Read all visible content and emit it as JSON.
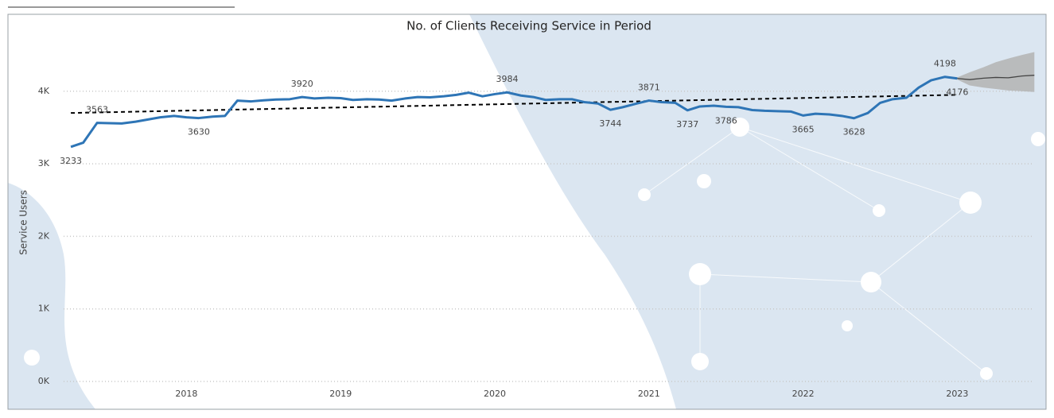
{
  "chart_data": {
    "type": "line",
    "title": "No. of Clients Receiving Service in Period",
    "y_label": "Service Users",
    "x": [
      2017.25,
      2017.33,
      2017.42,
      2017.5,
      2017.58,
      2017.67,
      2017.75,
      2017.83,
      2017.92,
      2018.0,
      2018.08,
      2018.17,
      2018.25,
      2018.33,
      2018.42,
      2018.5,
      2018.58,
      2018.67,
      2018.75,
      2018.83,
      2018.92,
      2019.0,
      2019.08,
      2019.17,
      2019.25,
      2019.33,
      2019.42,
      2019.5,
      2019.58,
      2019.67,
      2019.75,
      2019.83,
      2019.92,
      2020.0,
      2020.08,
      2020.17,
      2020.25,
      2020.33,
      2020.42,
      2020.5,
      2020.58,
      2020.67,
      2020.75,
      2020.83,
      2020.92,
      2021.0,
      2021.08,
      2021.17,
      2021.25,
      2021.33,
      2021.42,
      2021.5,
      2021.58,
      2021.67,
      2021.75,
      2021.83,
      2021.92,
      2022.0,
      2022.08,
      2022.17,
      2022.25,
      2022.33,
      2022.42,
      2022.5,
      2022.58,
      2022.67,
      2022.75,
      2022.83,
      2022.92,
      2023.0
    ],
    "series": [
      {
        "name": "Service Users",
        "color": "#2e75b6",
        "values": [
          3233,
          3290,
          3563,
          3560,
          3555,
          3580,
          3610,
          3640,
          3660,
          3640,
          3630,
          3650,
          3660,
          3870,
          3860,
          3875,
          3885,
          3890,
          3920,
          3900,
          3910,
          3905,
          3880,
          3890,
          3885,
          3870,
          3900,
          3920,
          3915,
          3930,
          3950,
          3980,
          3930,
          3960,
          3984,
          3940,
          3920,
          3880,
          3890,
          3890,
          3850,
          3830,
          3744,
          3780,
          3830,
          3871,
          3850,
          3840,
          3737,
          3790,
          3800,
          3786,
          3780,
          3740,
          3730,
          3725,
          3720,
          3665,
          3690,
          3680,
          3660,
          3628,
          3700,
          3840,
          3890,
          3910,
          4050,
          4150,
          4198,
          4176
        ],
        "labeled_points": [
          0,
          2,
          10,
          18,
          34,
          42,
          45,
          48,
          51,
          57,
          61,
          68,
          69
        ]
      }
    ],
    "trend": {
      "color": "#000000",
      "x": [
        2017.25,
        2023.0
      ],
      "values": [
        3700,
        3950
      ]
    },
    "forecast": {
      "color": "#444444",
      "band_color": "#b3b3b3",
      "x": [
        2023.0,
        2023.08,
        2023.17,
        2023.25,
        2023.33,
        2023.42,
        2023.5
      ],
      "values": [
        4176,
        4160,
        4180,
        4190,
        4185,
        4210,
        4220
      ],
      "upper": [
        4190,
        4260,
        4330,
        4400,
        4450,
        4500,
        4540
      ],
      "lower": [
        4160,
        4080,
        4050,
        4030,
        4010,
        4000,
        3990
      ]
    },
    "xlim": [
      2017.1,
      2023.55
    ],
    "xticks": [
      2018,
      2019,
      2020,
      2021,
      2022,
      2023
    ],
    "ylim": [
      0,
      4600
    ],
    "yticks": [
      {
        "value": 0,
        "label": "0K"
      },
      {
        "value": 1000,
        "label": "1K"
      },
      {
        "value": 2000,
        "label": "2K"
      },
      {
        "value": 3000,
        "label": "3K"
      },
      {
        "value": 4000,
        "label": "4K"
      }
    ],
    "grid": true
  }
}
